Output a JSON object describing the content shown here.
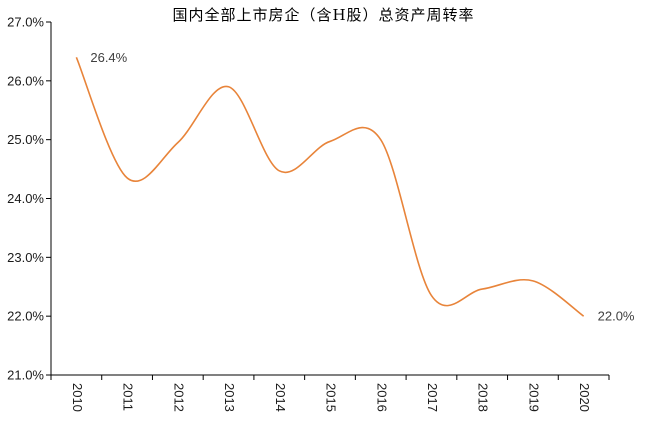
{
  "chart_data": {
    "type": "line",
    "title": "国内全部上市房企（含H股）总资产周转率",
    "xlabel": "",
    "ylabel": "",
    "categories": [
      "2010",
      "2011",
      "2012",
      "2013",
      "2014",
      "2015",
      "2016",
      "2017",
      "2018",
      "2019",
      "2020"
    ],
    "series": [
      {
        "values": [
          26.4,
          24.35,
          24.95,
          25.9,
          24.47,
          24.97,
          25.0,
          22.35,
          22.46,
          22.6,
          22.0
        ],
        "color": "#E8843A"
      }
    ],
    "ylim": [
      21.0,
      27.0
    ],
    "yticks": [
      21.0,
      22.0,
      23.0,
      24.0,
      25.0,
      26.0,
      27.0
    ],
    "ytick_labels": [
      "21.0%",
      "22.0%",
      "23.0%",
      "24.0%",
      "25.0%",
      "26.0%",
      "27.0%"
    ],
    "data_labels": [
      {
        "index": 0,
        "text": "26.4%"
      },
      {
        "index": 10,
        "text": "22.0%"
      }
    ],
    "grid": false,
    "legend": "none",
    "line_style": "smooth"
  },
  "colors": {
    "line": "#E8843A",
    "axis": "#000000"
  }
}
